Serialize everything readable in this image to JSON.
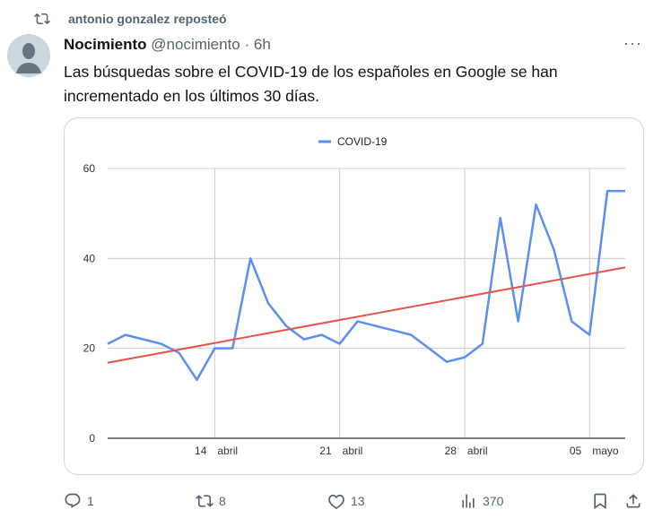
{
  "repost": {
    "icon": "repost-icon",
    "label": "antonio gonzalez reposteó"
  },
  "tweet": {
    "author_name": "Nocimiento",
    "handle": "@nocimiento",
    "separator": "·",
    "time": "6h",
    "text_line1": "Las búsquedas sobre el COVID-19 de los españoles en Google se han",
    "text_line2": "incrementado en los últimos 30 días.",
    "more_label": "···"
  },
  "actions": {
    "replies": "1",
    "reposts": "8",
    "likes": "13",
    "views": "370"
  },
  "colors": {
    "series": "#5b8ff0",
    "trend": "#e8534a",
    "grid": "#cccccc"
  },
  "chart_data": {
    "type": "line",
    "legend": [
      "COVID-19"
    ],
    "legend_position": "top-center",
    "x": [
      "8 abr",
      "9 abr",
      "10 abr",
      "11 abr",
      "12 abr",
      "13 abr",
      "14 abr",
      "15 abr",
      "16 abr",
      "17 abr",
      "18 abr",
      "19 abr",
      "20 abr",
      "21 abr",
      "22 abr",
      "23 abr",
      "24 abr",
      "25 abr",
      "26 abr",
      "27 abr",
      "28 abr",
      "29 abr",
      "30 abr",
      "1 may",
      "2 may",
      "3 may",
      "4 may",
      "5 may",
      "6 may",
      "7 may"
    ],
    "series": [
      {
        "name": "COVID-19",
        "values": [
          21,
          23,
          22,
          21,
          19,
          13,
          20,
          20,
          40,
          30,
          25,
          22,
          23,
          21,
          26,
          25,
          24,
          23,
          20,
          17,
          18,
          21,
          49,
          26,
          52,
          42,
          26,
          23,
          55,
          55
        ]
      }
    ],
    "trendline": {
      "start": 16.8,
      "end": 38
    },
    "ylim": [
      0,
      60
    ],
    "yticks": [
      "0",
      "20",
      "40",
      "60"
    ],
    "xticks": [
      {
        "index": 6,
        "day": "14",
        "month": "abril"
      },
      {
        "index": 13,
        "day": "21",
        "month": "abril"
      },
      {
        "index": 20,
        "day": "28",
        "month": "abril"
      },
      {
        "index": 27,
        "day": "05",
        "month": "mayo"
      }
    ],
    "grid": true
  }
}
